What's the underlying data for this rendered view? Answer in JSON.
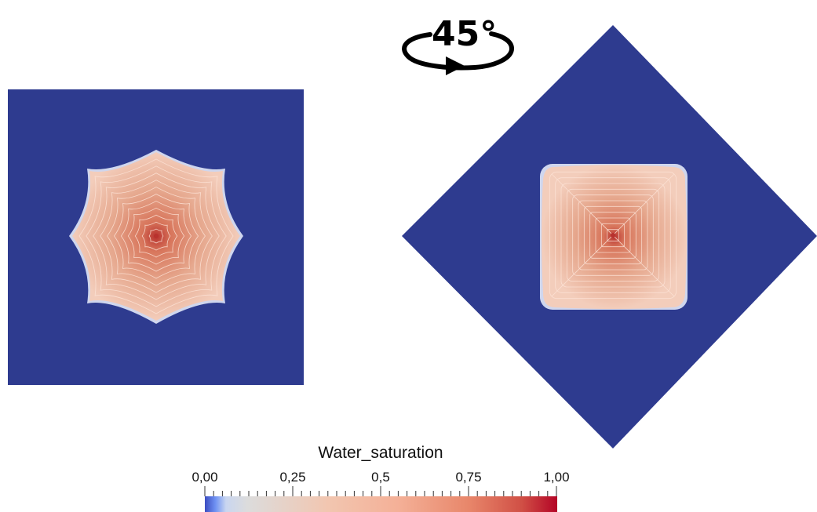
{
  "rotation": {
    "angle_label": "45°",
    "icon": "rotate-arrow-icon"
  },
  "panels": [
    {
      "name": "original-domain",
      "rotation_deg": 0,
      "plume_shape": "octagonal-star"
    },
    {
      "name": "rotated-domain",
      "rotation_deg": 45,
      "plume_shape": "rounded-square"
    }
  ],
  "colors": {
    "domain": "#2e3b8f",
    "plume_edge": "#f1c6b2",
    "plume_mid": "#e4a386",
    "plume_center": "#b8322e",
    "contour": "#fde4d8"
  },
  "colorbar": {
    "title": "Water_saturation",
    "tick_labels": [
      "0,00",
      "0,25",
      "0,5",
      "0,75",
      "1,00"
    ],
    "range": [
      0,
      1
    ],
    "colormap": "cool-to-warm",
    "stops": [
      "#3b4cc0",
      "#6f92f3",
      "#dddddd",
      "#f4b69b",
      "#e8866a",
      "#b40426"
    ]
  }
}
